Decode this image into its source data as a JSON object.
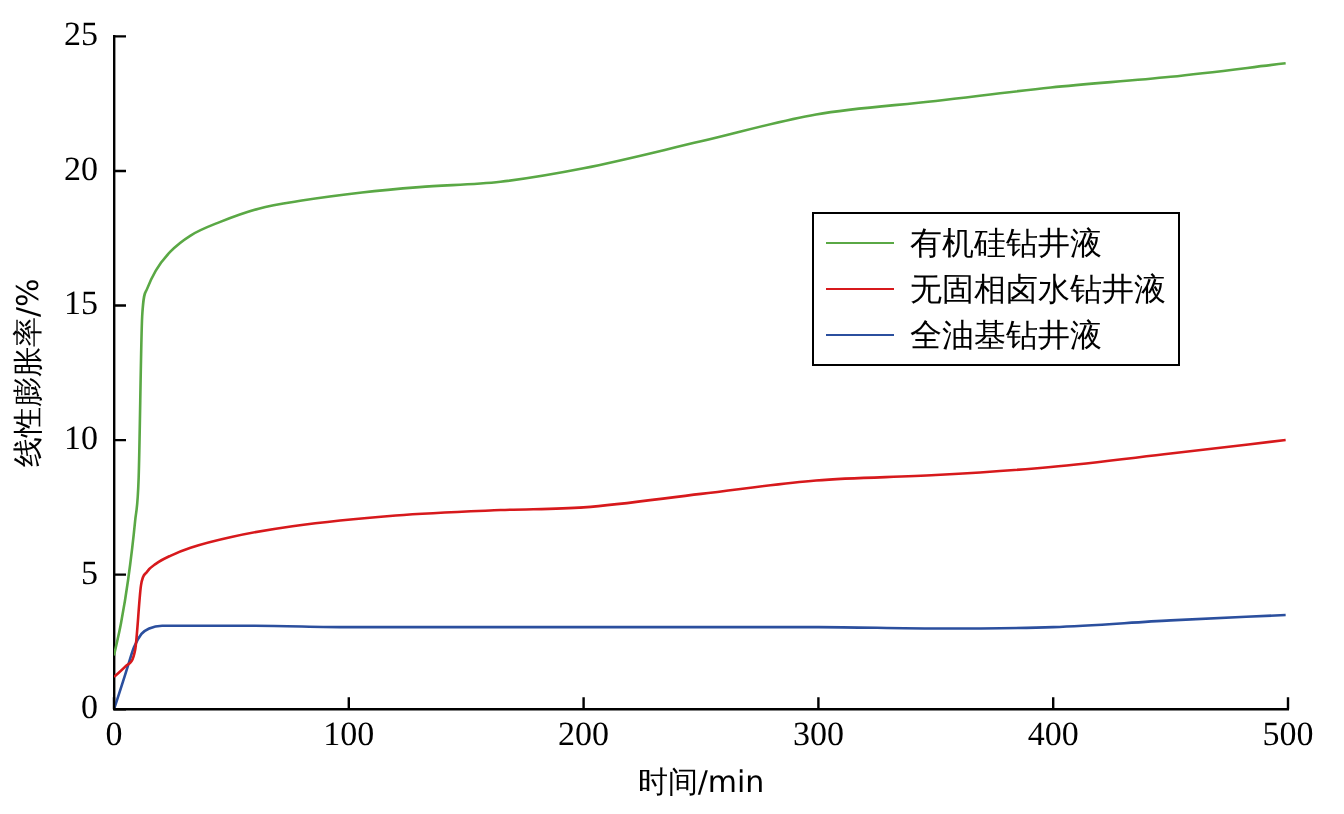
{
  "chart_data": {
    "type": "line",
    "xlabel": "时间/min",
    "ylabel": "线性膨胀率/%",
    "xlim": [
      0,
      500
    ],
    "ylim": [
      0,
      25
    ],
    "xticks": [
      0,
      100,
      200,
      300,
      400,
      500
    ],
    "yticks": [
      0,
      5,
      10,
      15,
      20,
      25
    ],
    "grid": false,
    "legend": "right",
    "marker": "none",
    "line_style": "solid",
    "series": [
      {
        "name": "有机硅钻井液",
        "color": "#5aa845",
        "x": [
          0,
          3,
          6,
          9,
          10.5,
          12,
          14,
          17.8,
          24,
          32.6,
          45,
          61.6,
          80,
          105.6,
          130,
          164.6,
          200,
          250,
          299,
          350,
          399,
          450,
          499
        ],
        "values": [
          2.0,
          3.2,
          4.8,
          7.0,
          8.6,
          14.6,
          15.6,
          16.3,
          17.0,
          17.6,
          18.1,
          18.6,
          18.9,
          19.2,
          19.4,
          19.6,
          20.1,
          21.1,
          22.1,
          22.6,
          23.1,
          23.5,
          24.0
        ]
      },
      {
        "name": "无固相卤水钻井液",
        "color": "#d7191c",
        "x": [
          0,
          5,
          9,
          11.5,
          14,
          17.8,
          24,
          32.6,
          50,
          76,
          120,
          164.6,
          200,
          250,
          299,
          350,
          399,
          450,
          499
        ],
        "values": [
          1.2,
          1.6,
          2.2,
          4.6,
          5.1,
          5.4,
          5.7,
          6.0,
          6.4,
          6.8,
          7.2,
          7.4,
          7.5,
          8.0,
          8.5,
          8.7,
          9.0,
          9.5,
          10.0
        ]
      },
      {
        "name": "全油基钻井液",
        "color": "#2b4f9e",
        "x": [
          0,
          3,
          5.9,
          8.5,
          11.7,
          15,
          20.5,
          30,
          60,
          100,
          200,
          300,
          350,
          400,
          450,
          499
        ],
        "values": [
          0,
          0.8,
          1.6,
          2.3,
          2.8,
          3.0,
          3.1,
          3.1,
          3.1,
          3.05,
          3.05,
          3.05,
          3.0,
          3.05,
          3.3,
          3.5
        ]
      }
    ]
  }
}
